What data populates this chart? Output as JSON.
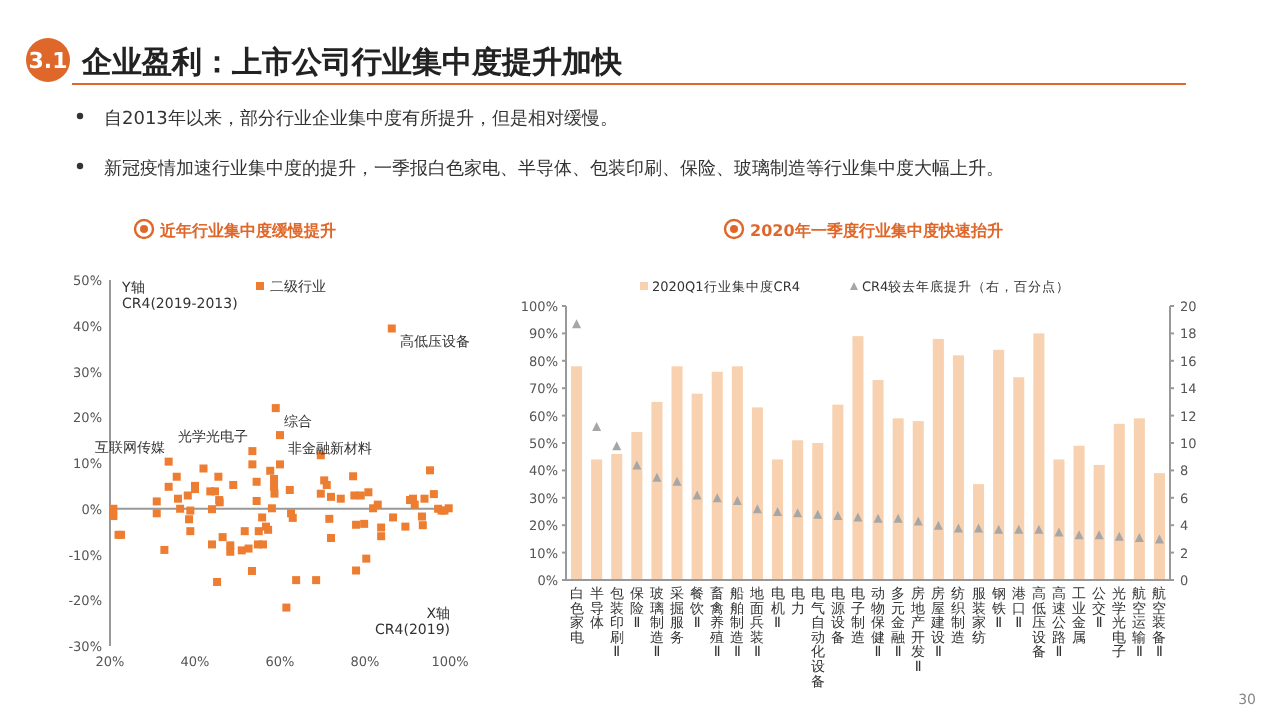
{
  "chart_data": [
    {
      "type": "other",
      "title": "企业盈利：上市公司行业集中度提升加快",
      "annotations": [
        "3.1",
        "自2013年以来，部分行业企业集中度有所提升，但是相对缓慢。",
        "新冠疫情加速行业集中度的提升，一季报白色家电、半导体、包装印刷、保险、玻璃制造等行业集中度大幅上升。",
        "30"
      ]
    },
    {
      "type": "scatter",
      "title": "近年行业集中度缓慢提升",
      "xlabel": "X轴\nCR4(2019)",
      "ylabel": "Y轴\nCR4(2019-2013)",
      "legend": "top",
      "marker": "square",
      "xlim": [
        20,
        100
      ],
      "xticks": [
        {
          "value": 20,
          "label": "20%"
        },
        {
          "value": 40,
          "label": "40%"
        },
        {
          "value": 60,
          "label": "60%"
        },
        {
          "value": 80,
          "label": "80%"
        },
        {
          "value": 100,
          "label": "100%"
        }
      ],
      "ylim": [
        -30,
        50
      ],
      "yticks": [
        {
          "value": -30,
          "label": "-30%"
        },
        {
          "value": -20,
          "label": "-20%"
        },
        {
          "value": -10,
          "label": "-10%"
        },
        {
          "value": 0,
          "label": "0%"
        },
        {
          "value": 10,
          "label": "10%"
        },
        {
          "value": 20,
          "label": "20%"
        },
        {
          "value": 30,
          "label": "30%"
        },
        {
          "value": 40,
          "label": "40%"
        },
        {
          "value": 50,
          "label": "50%"
        }
      ],
      "series": [
        {
          "name": "二级行业",
          "color": "#ed7d31",
          "x": [
            20.8,
            20.8,
            22,
            22.6,
            31,
            31,
            32.8,
            33.8,
            33.8,
            35.7,
            36,
            36.5,
            38.3,
            38.6,
            38.9,
            38.9,
            40,
            40,
            42,
            43.6,
            44,
            44,
            44.7,
            45.2,
            45.5,
            45.7,
            45.8,
            46.5,
            48.3,
            48.3,
            49,
            51,
            51.7,
            52.6,
            53.4,
            53.5,
            53.5,
            54.5,
            54.5,
            54.8,
            55,
            55.8,
            56,
            56.7,
            57.2,
            57.7,
            58.1,
            58.6,
            58.6,
            58.7,
            59,
            60,
            60,
            61.5,
            62.3,
            62.6,
            63,
            63.8,
            68.5,
            69.6,
            69.6,
            70.4,
            71,
            71.6,
            72,
            72,
            74.3,
            77.2,
            77.5,
            77.9,
            77.9,
            79,
            79.8,
            80.3,
            80.8,
            81.9,
            83,
            83.8,
            83.8,
            86.3,
            86.6,
            89.5,
            90.6,
            91.3,
            91.7,
            93.4,
            93.6,
            94,
            95.3,
            96.2,
            97.2,
            98,
            98.7,
            99.7
          ],
          "values": [
            0,
            -1.6,
            -5.7,
            -5.7,
            1.6,
            -1,
            -9,
            10.3,
            4.8,
            7,
            2.2,
            0,
            2.9,
            -2.3,
            -4.9,
            -0.4,
            5,
            4.3,
            8.8,
            3.8,
            -0.1,
            -7.8,
            3.8,
            -16,
            7,
            1.9,
            1.4,
            -6.2,
            -8,
            -9.4,
            5.2,
            -9.1,
            -4.9,
            -8.7,
            -13.6,
            12.6,
            9.7,
            5.9,
            1.7,
            -7.8,
            -4.9,
            -1.9,
            -7.8,
            -3.9,
            -4.6,
            8.3,
            0.1,
            6.5,
            4.8,
            3.3,
            22,
            16.1,
            9.7,
            -21.6,
            4.1,
            -1,
            -2,
            -15.6,
            -15.6,
            11.7,
            3.3,
            6.2,
            5.2,
            -2.2,
            -6.4,
            2.6,
            2.2,
            7.1,
            2.9,
            -13.5,
            -3.5,
            2.9,
            -3.3,
            -10.9,
            3.6,
            0.1,
            0.9,
            -6,
            -4.1,
            39.4,
            -1.9,
            -3.9,
            1.9,
            2.2,
            0.9,
            -1.7,
            -3.6,
            2.2,
            8.4,
            3.2,
            0,
            -0.4,
            -0.4,
            0.1
          ]
        }
      ],
      "annotations": [
        {
          "text": "高低压设备",
          "x": 86.3,
          "y": 39.4
        },
        {
          "text": "综合",
          "x": 59,
          "y": 22
        },
        {
          "text": "非金融新材料",
          "x": 60,
          "y": 16.1
        },
        {
          "text": "光学光电子",
          "x": 53.5,
          "y": 12.6
        },
        {
          "text": "互联网传媒",
          "x": 33.8,
          "y": 10.3
        }
      ]
    },
    {
      "type": "bar",
      "title": "2020年一季度行业集中度快速抬升",
      "legend": "top",
      "categories": [
        "白色家电",
        "半导体",
        "包装印刷Ⅱ",
        "保险Ⅱ",
        "玻璃制造Ⅱ",
        "采掘服务",
        "餐饮Ⅱ",
        "畜禽养殖Ⅱ",
        "船舶制造Ⅱ",
        "地面兵装Ⅱ",
        "电机Ⅱ",
        "电力",
        "电气自动化设备",
        "电源设备",
        "电子制造",
        "动物保健Ⅱ",
        "多元金融Ⅱ",
        "房地产开发Ⅱ",
        "房屋建设Ⅱ",
        "纺织制造",
        "服装家纺",
        "钢铁Ⅱ",
        "港口Ⅱ",
        "高低压设备",
        "高速公路Ⅱ",
        "工业金属",
        "公交Ⅱ",
        "光学光电子",
        "航空运输Ⅱ",
        "航空装备Ⅱ"
      ],
      "ylim": [
        0,
        100
      ],
      "yticks": [
        {
          "value": 0,
          "label": "0%"
        },
        {
          "value": 10,
          "label": "10%"
        },
        {
          "value": 20,
          "label": "20%"
        },
        {
          "value": 30,
          "label": "30%"
        },
        {
          "value": 40,
          "label": "40%"
        },
        {
          "value": 50,
          "label": "50%"
        },
        {
          "value": 60,
          "label": "60%"
        },
        {
          "value": 70,
          "label": "70%"
        },
        {
          "value": 80,
          "label": "80%"
        },
        {
          "value": 90,
          "label": "90%"
        },
        {
          "value": 100,
          "label": "100%"
        }
      ],
      "y2lim": [
        0,
        20
      ],
      "y2ticks": [
        0,
        2,
        4,
        6,
        8,
        10,
        12,
        14,
        16,
        18,
        20
      ],
      "series": [
        {
          "name": "2020Q1行业集中度CR4",
          "type": "bar",
          "color": "#f8d2b0",
          "values": [
            78,
            44,
            46,
            54,
            65,
            78,
            68,
            76,
            78,
            63,
            44,
            51,
            50,
            64,
            89,
            73,
            59,
            58,
            88,
            82,
            35,
            84,
            74,
            90,
            44,
            49,
            42,
            57,
            59,
            39
          ]
        },
        {
          "name": "CR4较去年底提升（右，百分点）",
          "type": "scatter",
          "axis": "y2",
          "marker": "triangle",
          "color": "#a6a6a6",
          "values": [
            18.7,
            11.2,
            9.8,
            8.4,
            7.5,
            7.2,
            6.2,
            6.0,
            5.8,
            5.2,
            5.0,
            4.9,
            4.8,
            4.7,
            4.6,
            4.5,
            4.5,
            4.3,
            4.0,
            3.8,
            3.8,
            3.7,
            3.7,
            3.7,
            3.5,
            3.3,
            3.3,
            3.2,
            3.1,
            3.0
          ]
        }
      ]
    }
  ]
}
